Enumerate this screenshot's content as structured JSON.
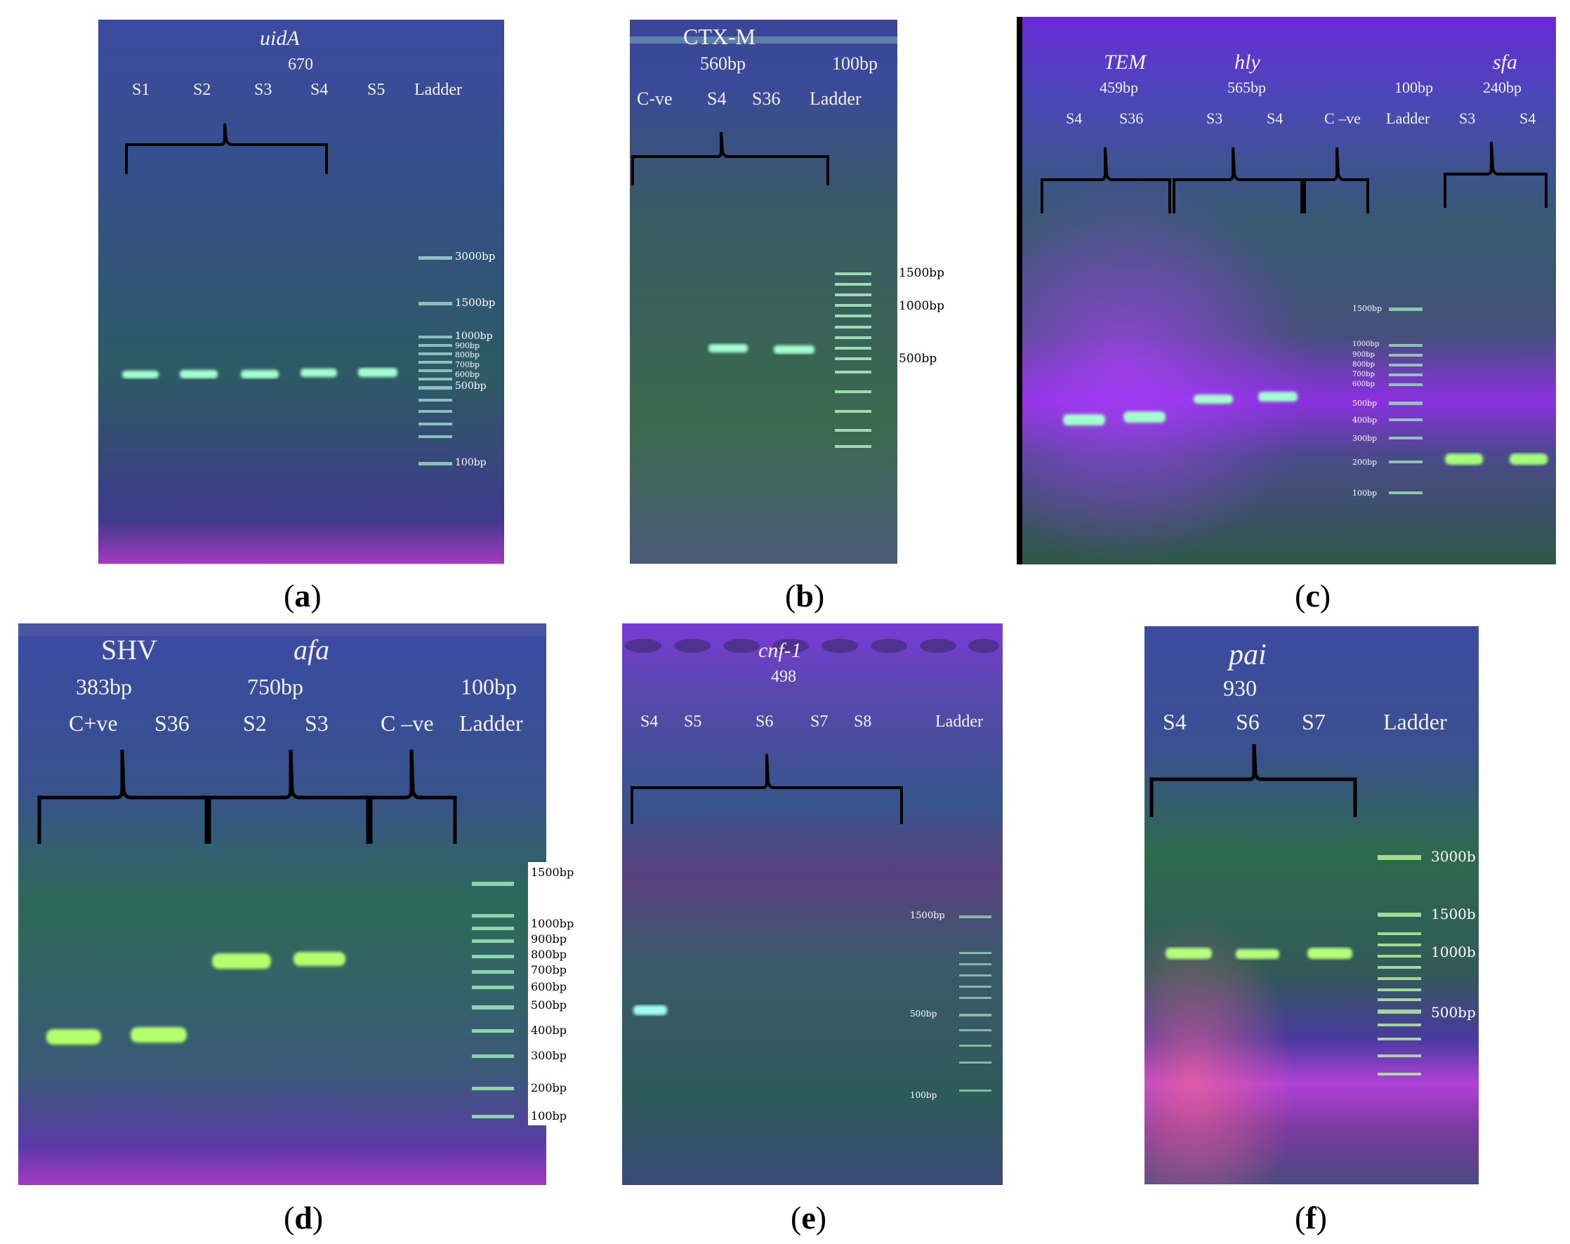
{
  "panels": {
    "a": {
      "caption": "a",
      "gene": "uidA",
      "size": "670",
      "lanes": [
        "S1",
        "S2",
        "S3",
        "S4",
        "S5",
        "Ladder"
      ],
      "ladder_labels": [
        "3000bp",
        "1500bp",
        "1000bp",
        "900bp",
        "800bp",
        "700bp",
        "600bp",
        "500bp",
        "100bp"
      ]
    },
    "b": {
      "caption": "b",
      "gene": "CTX-M",
      "size": "560bp",
      "ladder_size": "100bp",
      "lanes": [
        "C-ve",
        "S4",
        "S36",
        "Ladder"
      ],
      "ladder_labels": [
        "1500bp",
        "1000bp",
        "500bp"
      ]
    },
    "c": {
      "caption": "c",
      "groups": [
        {
          "gene": "TEM",
          "size": "459bp"
        },
        {
          "gene": "hly",
          "size": "565bp"
        },
        {
          "gene": "",
          "size": "100bp"
        },
        {
          "gene": "sfa",
          "size": "240bp"
        }
      ],
      "lanes": [
        "S4",
        "S36",
        "S3",
        "S4",
        "C –ve",
        "Ladder",
        "S3",
        "S4"
      ],
      "ladder_labels": [
        "1500bp",
        "1000bp",
        "900bp",
        "800bp",
        "700bp",
        "600bp",
        "500bp",
        "400bp",
        "300bp",
        "200bp",
        "100bp"
      ]
    },
    "d": {
      "caption": "d",
      "groups": [
        {
          "gene": "SHV",
          "size": "383bp"
        },
        {
          "gene": "afa",
          "size": "750bp"
        },
        {
          "gene": "",
          "size": "100bp"
        }
      ],
      "lanes": [
        "C+ve",
        "S36",
        "S2",
        "S3",
        "C –ve",
        "Ladder"
      ],
      "ladder_labels": [
        "1500bp",
        "1000bp",
        "900bp",
        "800bp",
        "700bp",
        "600bp",
        "500bp",
        "400bp",
        "300bp",
        "200bp",
        "100bp"
      ]
    },
    "e": {
      "caption": "e",
      "gene": "cnf-1",
      "size": "498",
      "lanes": [
        "S4",
        "S5",
        "S6",
        "S7",
        "S8",
        "Ladder"
      ],
      "ladder_labels": [
        "1500bp",
        "500bp",
        "100bp"
      ]
    },
    "f": {
      "caption": "f",
      "gene": "pai",
      "size": "930",
      "lanes": [
        "S4",
        "S6",
        "S7",
        "Ladder"
      ],
      "ladder_labels": [
        "3000b",
        "1500b",
        "1000b",
        "500bp"
      ]
    }
  },
  "colors": {
    "gel_blue": "#3c4c86",
    "gel_green": "#2f5a4c",
    "gel_purple": "#7a2fd0",
    "band_green": "#a6ff7a",
    "band_cyan": "#9ffff0"
  }
}
